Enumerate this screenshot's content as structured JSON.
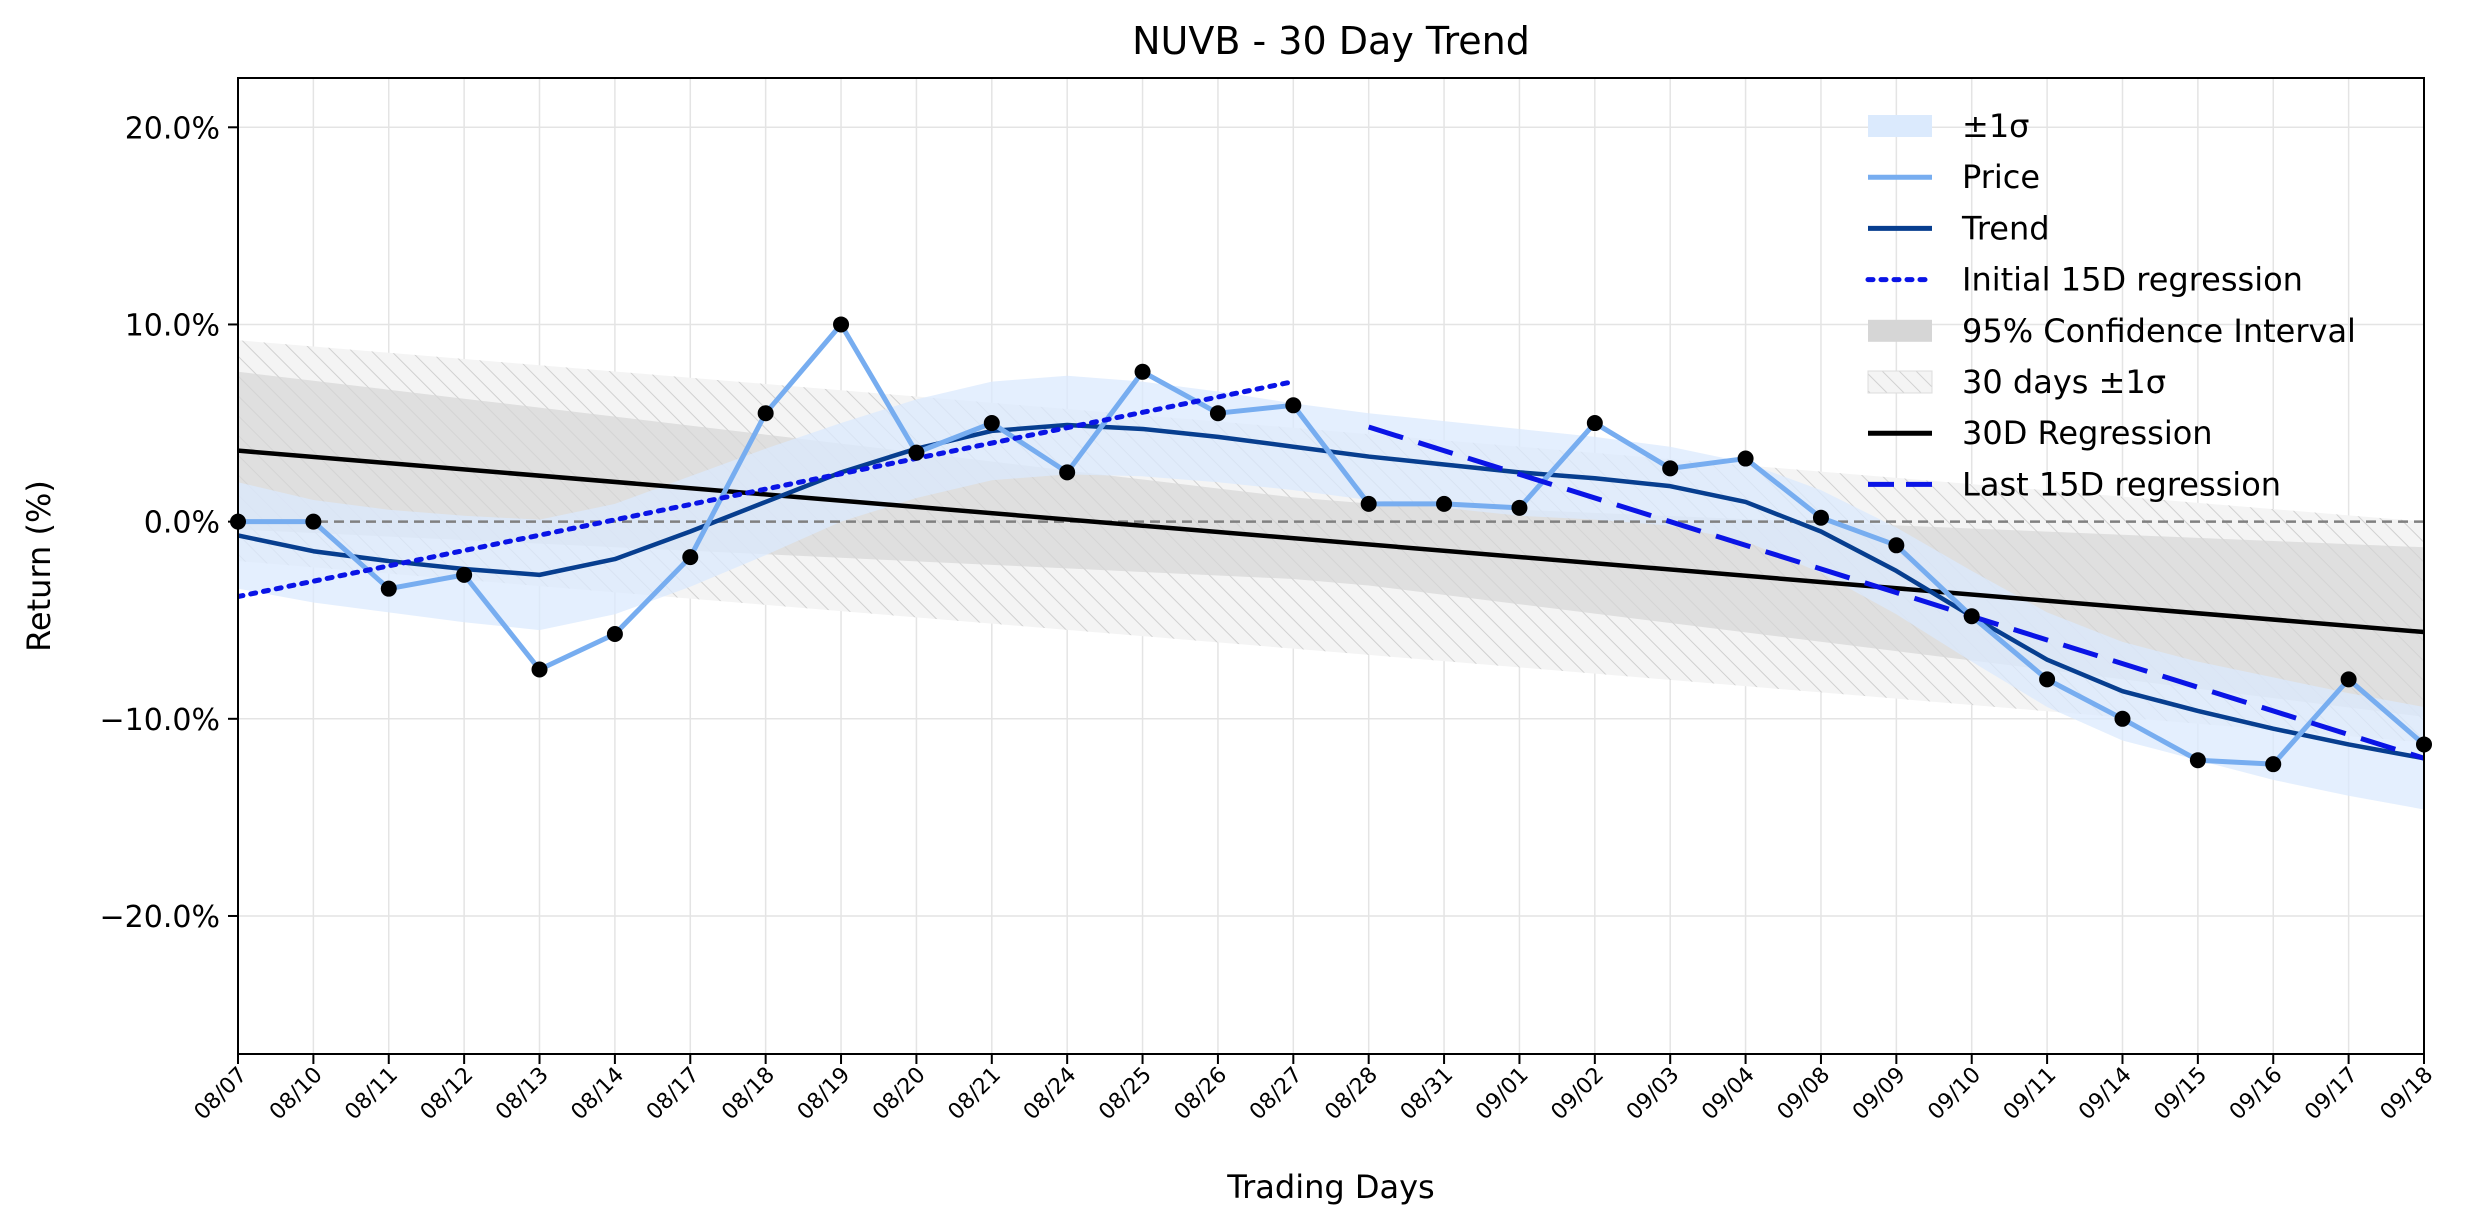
{
  "chart_data": {
    "type": "line",
    "title": "NUVB - 30 Day Trend",
    "xlabel": "Trading Days",
    "ylabel": "Return (%)",
    "ylim": [
      -27,
      22.5
    ],
    "yticks": [
      20,
      10,
      0,
      -10,
      -20
    ],
    "ytick_labels": [
      "20.0%",
      "10.0%",
      "0.0%",
      "−10.0%",
      "−20.0%"
    ],
    "grid": true,
    "legend_position": "top-right",
    "categories": [
      "08/07",
      "08/10",
      "08/11",
      "08/12",
      "08/13",
      "08/14",
      "08/17",
      "08/18",
      "08/19",
      "08/20",
      "08/21",
      "08/24",
      "08/25",
      "08/26",
      "08/27",
      "08/28",
      "08/31",
      "09/01",
      "09/02",
      "09/03",
      "09/04",
      "09/08",
      "09/09",
      "09/10",
      "09/11",
      "09/14",
      "09/15",
      "09/16",
      "09/17",
      "09/18"
    ],
    "price": [
      0.0,
      0.0,
      -3.4,
      -2.7,
      -7.5,
      -5.7,
      -1.8,
      5.5,
      10.0,
      3.5,
      5.0,
      2.5,
      7.6,
      5.5,
      5.9,
      0.9,
      0.9,
      0.7,
      5.0,
      2.7,
      3.2,
      0.2,
      -1.2,
      -4.8,
      -8.0,
      -10.0,
      -12.1,
      -12.3,
      -8.0,
      -11.3
    ],
    "trend": [
      -0.7,
      -1.5,
      -2.0,
      -2.4,
      -2.7,
      -1.9,
      -0.5,
      1.0,
      2.5,
      3.7,
      4.6,
      4.9,
      4.7,
      4.3,
      3.8,
      3.3,
      2.9,
      2.5,
      2.2,
      1.8,
      1.0,
      -0.5,
      -2.5,
      -4.8,
      -7.0,
      -8.6,
      -9.6,
      -10.5,
      -11.3,
      -12.0
    ],
    "sigma_band_halfwidth": [
      2.7,
      2.6,
      2.6,
      2.7,
      2.8,
      2.8,
      2.8,
      2.7,
      2.5,
      2.5,
      2.5,
      2.5,
      2.4,
      2.3,
      2.2,
      2.2,
      2.2,
      2.2,
      2.1,
      2.0,
      2.0,
      2.1,
      2.2,
      2.3,
      2.4,
      2.5,
      2.5,
      2.6,
      2.6,
      2.6
    ],
    "regression_30d": {
      "start": 3.6,
      "end": -5.6
    },
    "confidence_95_halfwidth": {
      "start": 4.0,
      "mid": 2.0,
      "end": 4.3
    },
    "sigma_30d_halfwidth": 5.6,
    "initial_15d_regression": {
      "x_start": 0,
      "x_end": 14,
      "start": -3.8,
      "end": 7.1
    },
    "last_15d_regression": {
      "x_start": 15,
      "x_end": 29,
      "start": 4.8,
      "end": -12.0
    },
    "zero_line": 0,
    "colors": {
      "sigma_band": "#dbeafd",
      "price": "#77adf0",
      "trend": "#073e8f",
      "initial_regression": "#0a14e6",
      "confidence": "#d6d6d6",
      "sigma_30d": "#eeeeee",
      "regression_30d": "#000000",
      "last_regression": "#0a14e6",
      "markers": "#000000",
      "zero_line": "#808080",
      "grid": "#e4e4e4"
    },
    "legend": [
      {
        "label": "±1σ",
        "style": "patch-sigma"
      },
      {
        "label": "Price",
        "style": "line-price"
      },
      {
        "label": "Trend",
        "style": "line-trend"
      },
      {
        "label": "Initial 15D regression",
        "style": "line-dotted"
      },
      {
        "label": "95% Confidence Interval",
        "style": "patch-ci"
      },
      {
        "label": "30 days ±1σ",
        "style": "patch-hatch"
      },
      {
        "label": "30D Regression",
        "style": "line-black"
      },
      {
        "label": "Last 15D regression",
        "style": "line-dashed"
      }
    ]
  }
}
